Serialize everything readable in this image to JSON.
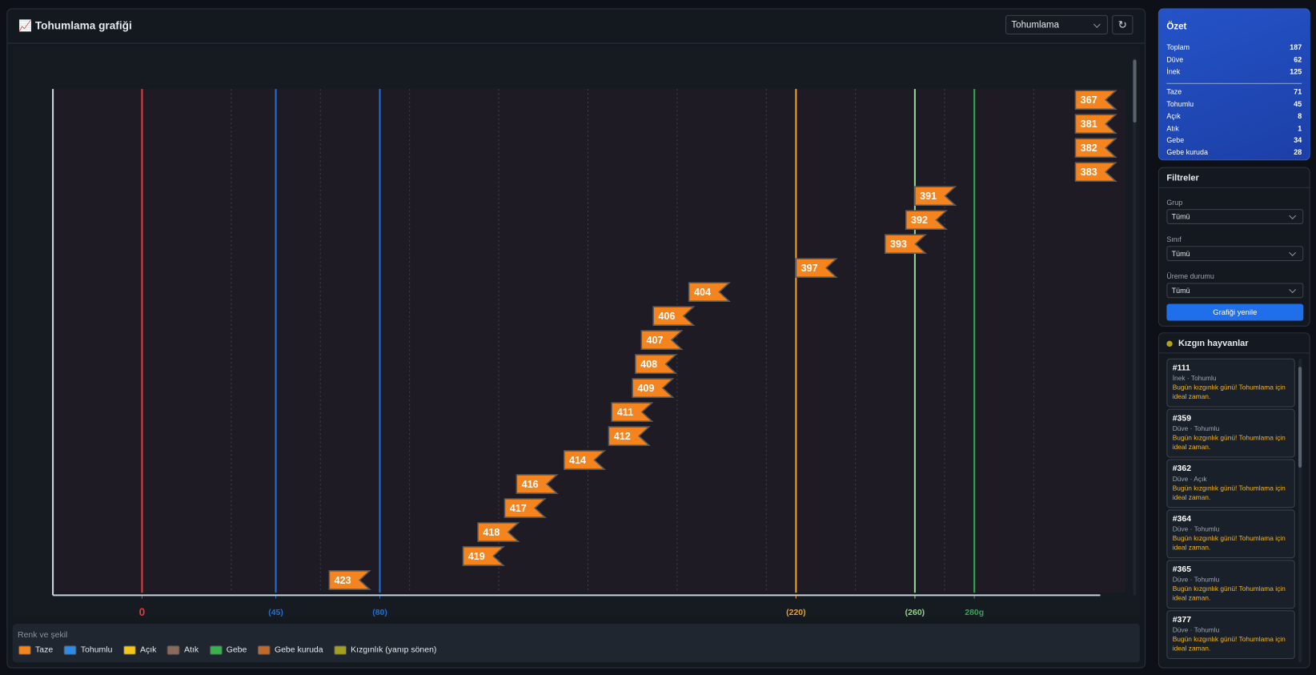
{
  "header": {
    "title": "📈 Tohumlama grafiği",
    "select": "Tohumlama"
  },
  "chart_data": {
    "type": "flag",
    "xlim": [
      -30,
      330
    ],
    "xgrid": [
      30,
      60,
      90,
      120,
      150,
      180,
      210,
      240,
      270,
      300
    ],
    "reference_lines": [
      {
        "value": 0,
        "label": "0",
        "color": "#e03a3e"
      },
      {
        "value": 45,
        "label": "(45)",
        "color": "#1e6fd9"
      },
      {
        "value": 80,
        "label": "(80)",
        "color": "#1e6fd9"
      },
      {
        "value": 220,
        "label": "(220)",
        "color": "#f0a020"
      },
      {
        "value": 260,
        "label": "(260)",
        "color": "#8fd48a"
      },
      {
        "value": 280,
        "label": "280g",
        "color": "#2fa84f"
      }
    ],
    "legend_title": "Renk ve şekil",
    "series": [
      {
        "name": "Taze",
        "color": "#f5841f",
        "labels": [
          "367",
          "381",
          "382",
          "383",
          "391",
          "392",
          "393",
          "397",
          "404",
          "406",
          "407",
          "408",
          "409",
          "411",
          "412",
          "414",
          "416",
          "417",
          "418",
          "419",
          "423"
        ],
        "x": [
          314,
          314,
          314,
          314,
          260,
          257,
          250,
          220,
          184,
          172,
          168,
          166,
          165,
          158,
          157,
          142,
          126,
          122,
          113,
          108,
          63
        ]
      },
      {
        "name": "Tohumlu",
        "color": "#2d8ceb"
      },
      {
        "name": "Açık",
        "color": "#f5c518"
      },
      {
        "name": "Atık",
        "color": "#8a6a5a"
      },
      {
        "name": "Gebe",
        "color": "#37b24d"
      },
      {
        "name": "Gebe kuruda",
        "color": "#c0692a"
      },
      {
        "name": "Kızgınlık (yanıp sönen)",
        "color": "#a3a020"
      }
    ]
  },
  "summary": {
    "title": "Özet",
    "groups": [
      [
        {
          "label": "Toplam",
          "value": 187
        },
        {
          "label": "Düve",
          "value": 62
        },
        {
          "label": "İnek",
          "value": 125
        }
      ],
      [
        {
          "label": "Taze",
          "value": 71
        },
        {
          "label": "Tohumlu",
          "value": 45
        },
        {
          "label": "Açık",
          "value": 8
        },
        {
          "label": "Atık",
          "value": 1
        },
        {
          "label": "Gebe",
          "value": 34
        },
        {
          "label": "Gebe kuruda",
          "value": 28
        }
      ]
    ]
  },
  "filters": {
    "title": "Filtreler",
    "fields": [
      {
        "label": "Grup",
        "value": "Tümü"
      },
      {
        "label": "Sınıf",
        "value": "Tümü"
      },
      {
        "label": "Üreme durumu",
        "value": "Tümü"
      }
    ],
    "button": "Grafiği yenile"
  },
  "alerts": {
    "title": "Kızgın hayvanlar",
    "items": [
      {
        "id": "#111",
        "sub": "İnek · Tohumlu",
        "message": "Bugün kızgınlık günü! Tohumlama için ideal zaman."
      },
      {
        "id": "#359",
        "sub": "Düve · Tohumlu",
        "message": "Bugün kızgınlık günü! Tohumlama için ideal zaman."
      },
      {
        "id": "#362",
        "sub": "Düve · Açık",
        "message": "Bugün kızgınlık günü! Tohumlama için ideal zaman."
      },
      {
        "id": "#364",
        "sub": "Düve · Tohumlu",
        "message": "Bugün kızgınlık günü! Tohumlama için ideal zaman."
      },
      {
        "id": "#365",
        "sub": "Düve · Tohumlu",
        "message": "Bugün kızgınlık günü! Tohumlama için ideal zaman."
      },
      {
        "id": "#377",
        "sub": "Düve · Tohumlu",
        "message": "Bugün kızgınlık günü! Tohumlama için ideal zaman."
      }
    ]
  }
}
